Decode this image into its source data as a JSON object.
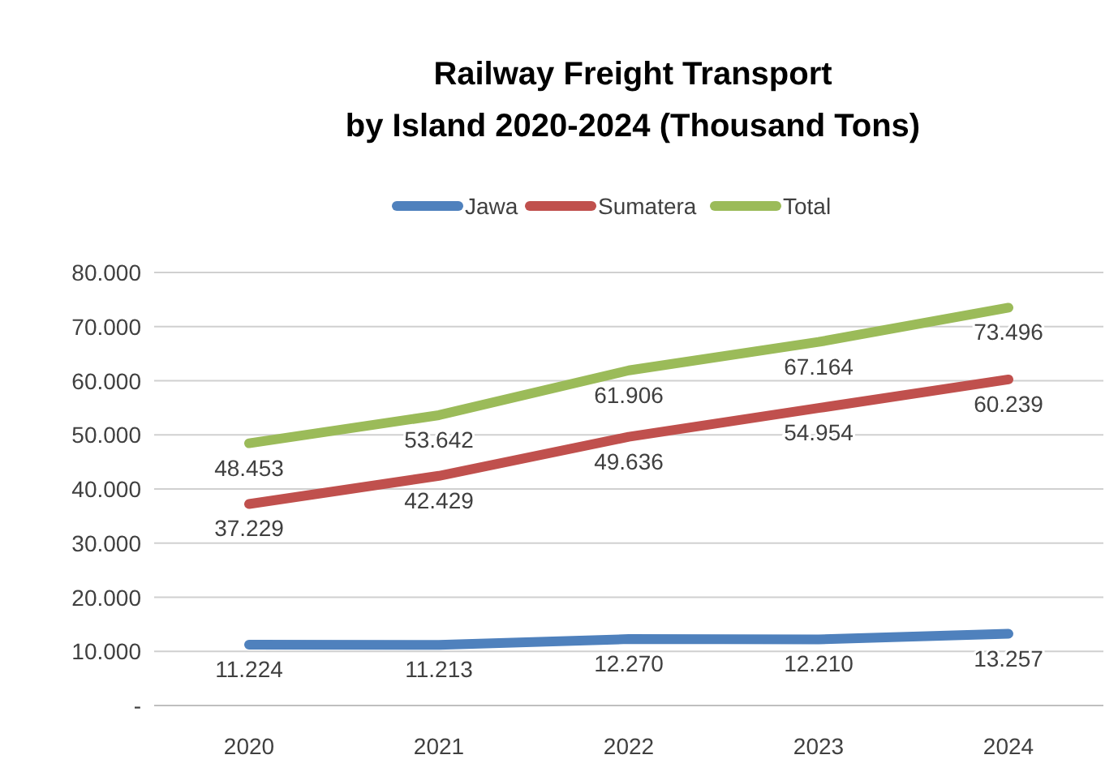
{
  "chart_data": {
    "type": "line",
    "title": "Railway Freight Transport\nby Island 2020-2024 (Thousand Tons)",
    "categories": [
      "2020",
      "2021",
      "2022",
      "2023",
      "2024"
    ],
    "series": [
      {
        "name": "Jawa",
        "color": "#4f81bd",
        "values": [
          11224,
          11213,
          12270,
          12210,
          13257
        ],
        "value_labels": [
          "11.224",
          "11.213",
          "12.270",
          "12.210",
          "13.257"
        ]
      },
      {
        "name": "Sumatera",
        "color": "#c0504d",
        "values": [
          37229,
          42429,
          49636,
          54954,
          60239
        ],
        "value_labels": [
          "37.229",
          "42.429",
          "49.636",
          "54.954",
          "60.239"
        ]
      },
      {
        "name": "Total",
        "color": "#9bbb59",
        "values": [
          48453,
          53642,
          61906,
          67164,
          73496
        ],
        "value_labels": [
          "48.453",
          "53.642",
          "61.906",
          "67.164",
          "73.496"
        ]
      }
    ],
    "ylim": [
      0,
      80000
    ],
    "yticks": [
      {
        "value": 0,
        "label": "-"
      },
      {
        "value": 10000,
        "label": "10.000"
      },
      {
        "value": 20000,
        "label": "20.000"
      },
      {
        "value": 30000,
        "label": "30.000"
      },
      {
        "value": 40000,
        "label": "40.000"
      },
      {
        "value": 50000,
        "label": "50.000"
      },
      {
        "value": 60000,
        "label": "60.000"
      },
      {
        "value": 70000,
        "label": "70.000"
      },
      {
        "value": 80000,
        "label": "80.000"
      }
    ],
    "grid": "y",
    "legend": "top",
    "marker": "none",
    "line_style": "solid"
  }
}
